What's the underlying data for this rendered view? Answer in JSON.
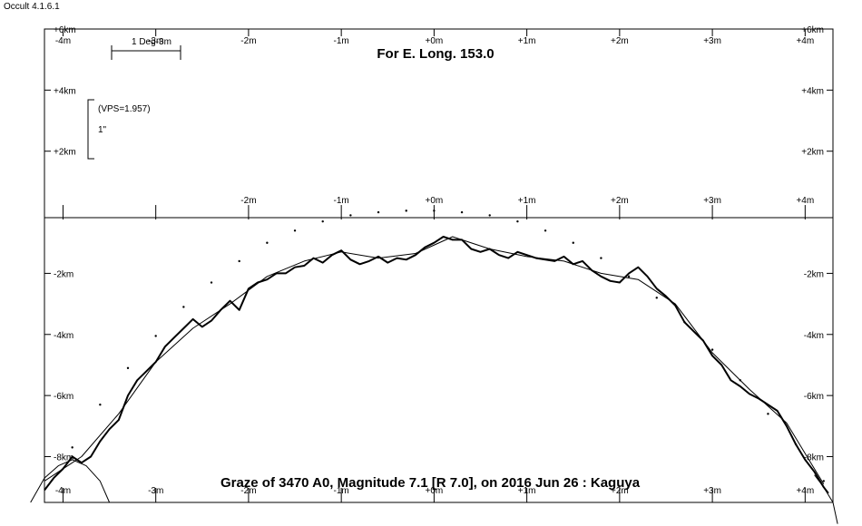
{
  "app": {
    "version": "Occult 4.1.6.1"
  },
  "chart_data": {
    "type": "line",
    "title": "Graze of  3470 A0,  Magnitude 7.1 [R 7.0],  on 2016 Jun 26  :  Kaguya",
    "subtitle": "For E. Long. 153.0",
    "scale_bar_label": "1 Deg-3m",
    "vps_label": "(VPS=1.957)",
    "vps_arcsec_label": "1\"",
    "x_axis": {
      "range": [
        -4.2,
        4.3
      ],
      "ticks": [
        -4,
        -3,
        -2,
        -1,
        0,
        1,
        2,
        3,
        4
      ],
      "top_tick_labels": [
        "-4m",
        "-3m",
        "-2m",
        "-1m",
        "+0m",
        "+1m",
        "+2m",
        "+3m",
        "+4m"
      ],
      "mid_tick_labels": [
        "",
        "",
        "-2m",
        "-1m",
        "+0m",
        "+1m",
        "+2m",
        "+3m",
        "+4m"
      ],
      "bottom_tick_labels": [
        "-4m",
        "-3m",
        "-2m",
        "-1m",
        "+0m",
        "+1m",
        "+2m",
        "+3m",
        "+4m"
      ]
    },
    "y_axis": {
      "range": [
        -9.5,
        6
      ],
      "ticks": [
        6,
        4,
        2,
        -2,
        -4,
        -6,
        -8
      ],
      "tick_labels": [
        "+6km",
        "+4km",
        "+2km",
        "-2km",
        "-4km",
        "-6km",
        "-8km"
      ]
    },
    "series": [
      {
        "style": "dotted",
        "x": [
          -3.9,
          -3.6,
          -3.3,
          -3.0,
          -2.7,
          -2.4,
          -2.1,
          -1.8,
          -1.5,
          -1.2,
          -0.9,
          -0.6,
          -0.3,
          0.0,
          0.3,
          0.6,
          0.9,
          1.2,
          1.5,
          1.8,
          2.1,
          2.4,
          2.7,
          3.0,
          3.3,
          3.6,
          3.9,
          4.2
        ],
        "y": [
          -7.7,
          -6.3,
          -5.1,
          -4.05,
          -3.1,
          -2.3,
          -1.6,
          -1.0,
          -0.6,
          -0.3,
          -0.1,
          0.0,
          0.05,
          0.05,
          0.0,
          -0.1,
          -0.3,
          -0.6,
          -1.0,
          -1.5,
          -2.1,
          -2.8,
          -3.6,
          -4.5,
          -5.5,
          -6.6,
          -7.6,
          -8.8
        ]
      },
      {
        "style": "thick",
        "x": [
          -4.2,
          -4.1,
          -4.0,
          -3.9,
          -3.8,
          -3.7,
          -3.6,
          -3.5,
          -3.4,
          -3.3,
          -3.2,
          -3.1,
          -3.0,
          -2.9,
          -2.8,
          -2.7,
          -2.6,
          -2.5,
          -2.4,
          -2.3,
          -2.2,
          -2.1,
          -2.0,
          -1.9,
          -1.8,
          -1.7,
          -1.6,
          -1.5,
          -1.4,
          -1.3,
          -1.2,
          -1.1,
          -1.0,
          -0.9,
          -0.8,
          -0.7,
          -0.6,
          -0.5,
          -0.4,
          -0.3,
          -0.2,
          -0.1,
          0.0,
          0.1,
          0.2,
          0.3,
          0.4,
          0.5,
          0.6,
          0.7,
          0.8,
          0.9,
          1.0,
          1.1,
          1.2,
          1.3,
          1.4,
          1.5,
          1.6,
          1.7,
          1.8,
          1.9,
          2.0,
          2.1,
          2.2,
          2.3,
          2.4,
          2.5,
          2.6,
          2.7,
          2.8,
          2.9,
          3.0,
          3.1,
          3.2,
          3.3,
          3.4,
          3.5,
          3.6,
          3.7,
          3.8,
          3.9,
          4.0,
          4.1,
          4.2,
          4.25
        ],
        "y": [
          -9.1,
          -8.7,
          -8.4,
          -8.0,
          -8.2,
          -8.0,
          -7.5,
          -7.1,
          -6.8,
          -6.0,
          -5.5,
          -5.2,
          -4.9,
          -4.4,
          -4.1,
          -3.8,
          -3.5,
          -3.75,
          -3.55,
          -3.2,
          -2.9,
          -3.2,
          -2.5,
          -2.3,
          -2.2,
          -2.0,
          -2.0,
          -1.8,
          -1.75,
          -1.5,
          -1.65,
          -1.4,
          -1.25,
          -1.55,
          -1.7,
          -1.6,
          -1.45,
          -1.65,
          -1.5,
          -1.55,
          -1.4,
          -1.15,
          -1.0,
          -0.8,
          -0.9,
          -0.9,
          -1.2,
          -1.3,
          -1.2,
          -1.4,
          -1.5,
          -1.3,
          -1.4,
          -1.5,
          -1.55,
          -1.6,
          -1.45,
          -1.7,
          -1.6,
          -1.9,
          -2.1,
          -2.25,
          -2.3,
          -2.0,
          -1.8,
          -2.1,
          -2.5,
          -2.75,
          -3.05,
          -3.6,
          -3.9,
          -4.2,
          -4.7,
          -5.0,
          -5.5,
          -5.7,
          -5.95,
          -6.1,
          -6.3,
          -6.5,
          -7.0,
          -7.6,
          -8.1,
          -8.5,
          -9.0,
          -9.2
        ]
      },
      {
        "style": "thin",
        "x": [
          -4.2,
          -3.8,
          -3.4,
          -3.0,
          -2.6,
          -2.2,
          -1.8,
          -1.4,
          -1.0,
          -0.6,
          -0.2,
          0.2,
          0.6,
          1.0,
          1.4,
          1.8,
          2.2,
          2.6,
          3.0,
          3.4,
          3.8,
          4.2
        ],
        "y": [
          -8.8,
          -8.0,
          -6.6,
          -4.9,
          -3.8,
          -3.0,
          -2.1,
          -1.6,
          -1.3,
          -1.5,
          -1.35,
          -0.8,
          -1.2,
          -1.45,
          -1.6,
          -2.0,
          -2.2,
          -3.0,
          -4.6,
          -5.8,
          -6.9,
          -8.9
        ]
      },
      {
        "style": "thin-limb",
        "x": [
          -4.35,
          -4.2,
          -4.05,
          -3.9,
          -3.75,
          -3.6,
          -3.5
        ],
        "y": [
          -9.5,
          -8.7,
          -8.3,
          -8.1,
          -8.3,
          -8.8,
          -9.5
        ]
      },
      {
        "style": "thin-limb",
        "x": [
          4.1,
          4.2,
          4.3,
          4.35
        ],
        "y": [
          -8.6,
          -9.0,
          -9.5,
          -10.2
        ]
      }
    ]
  }
}
